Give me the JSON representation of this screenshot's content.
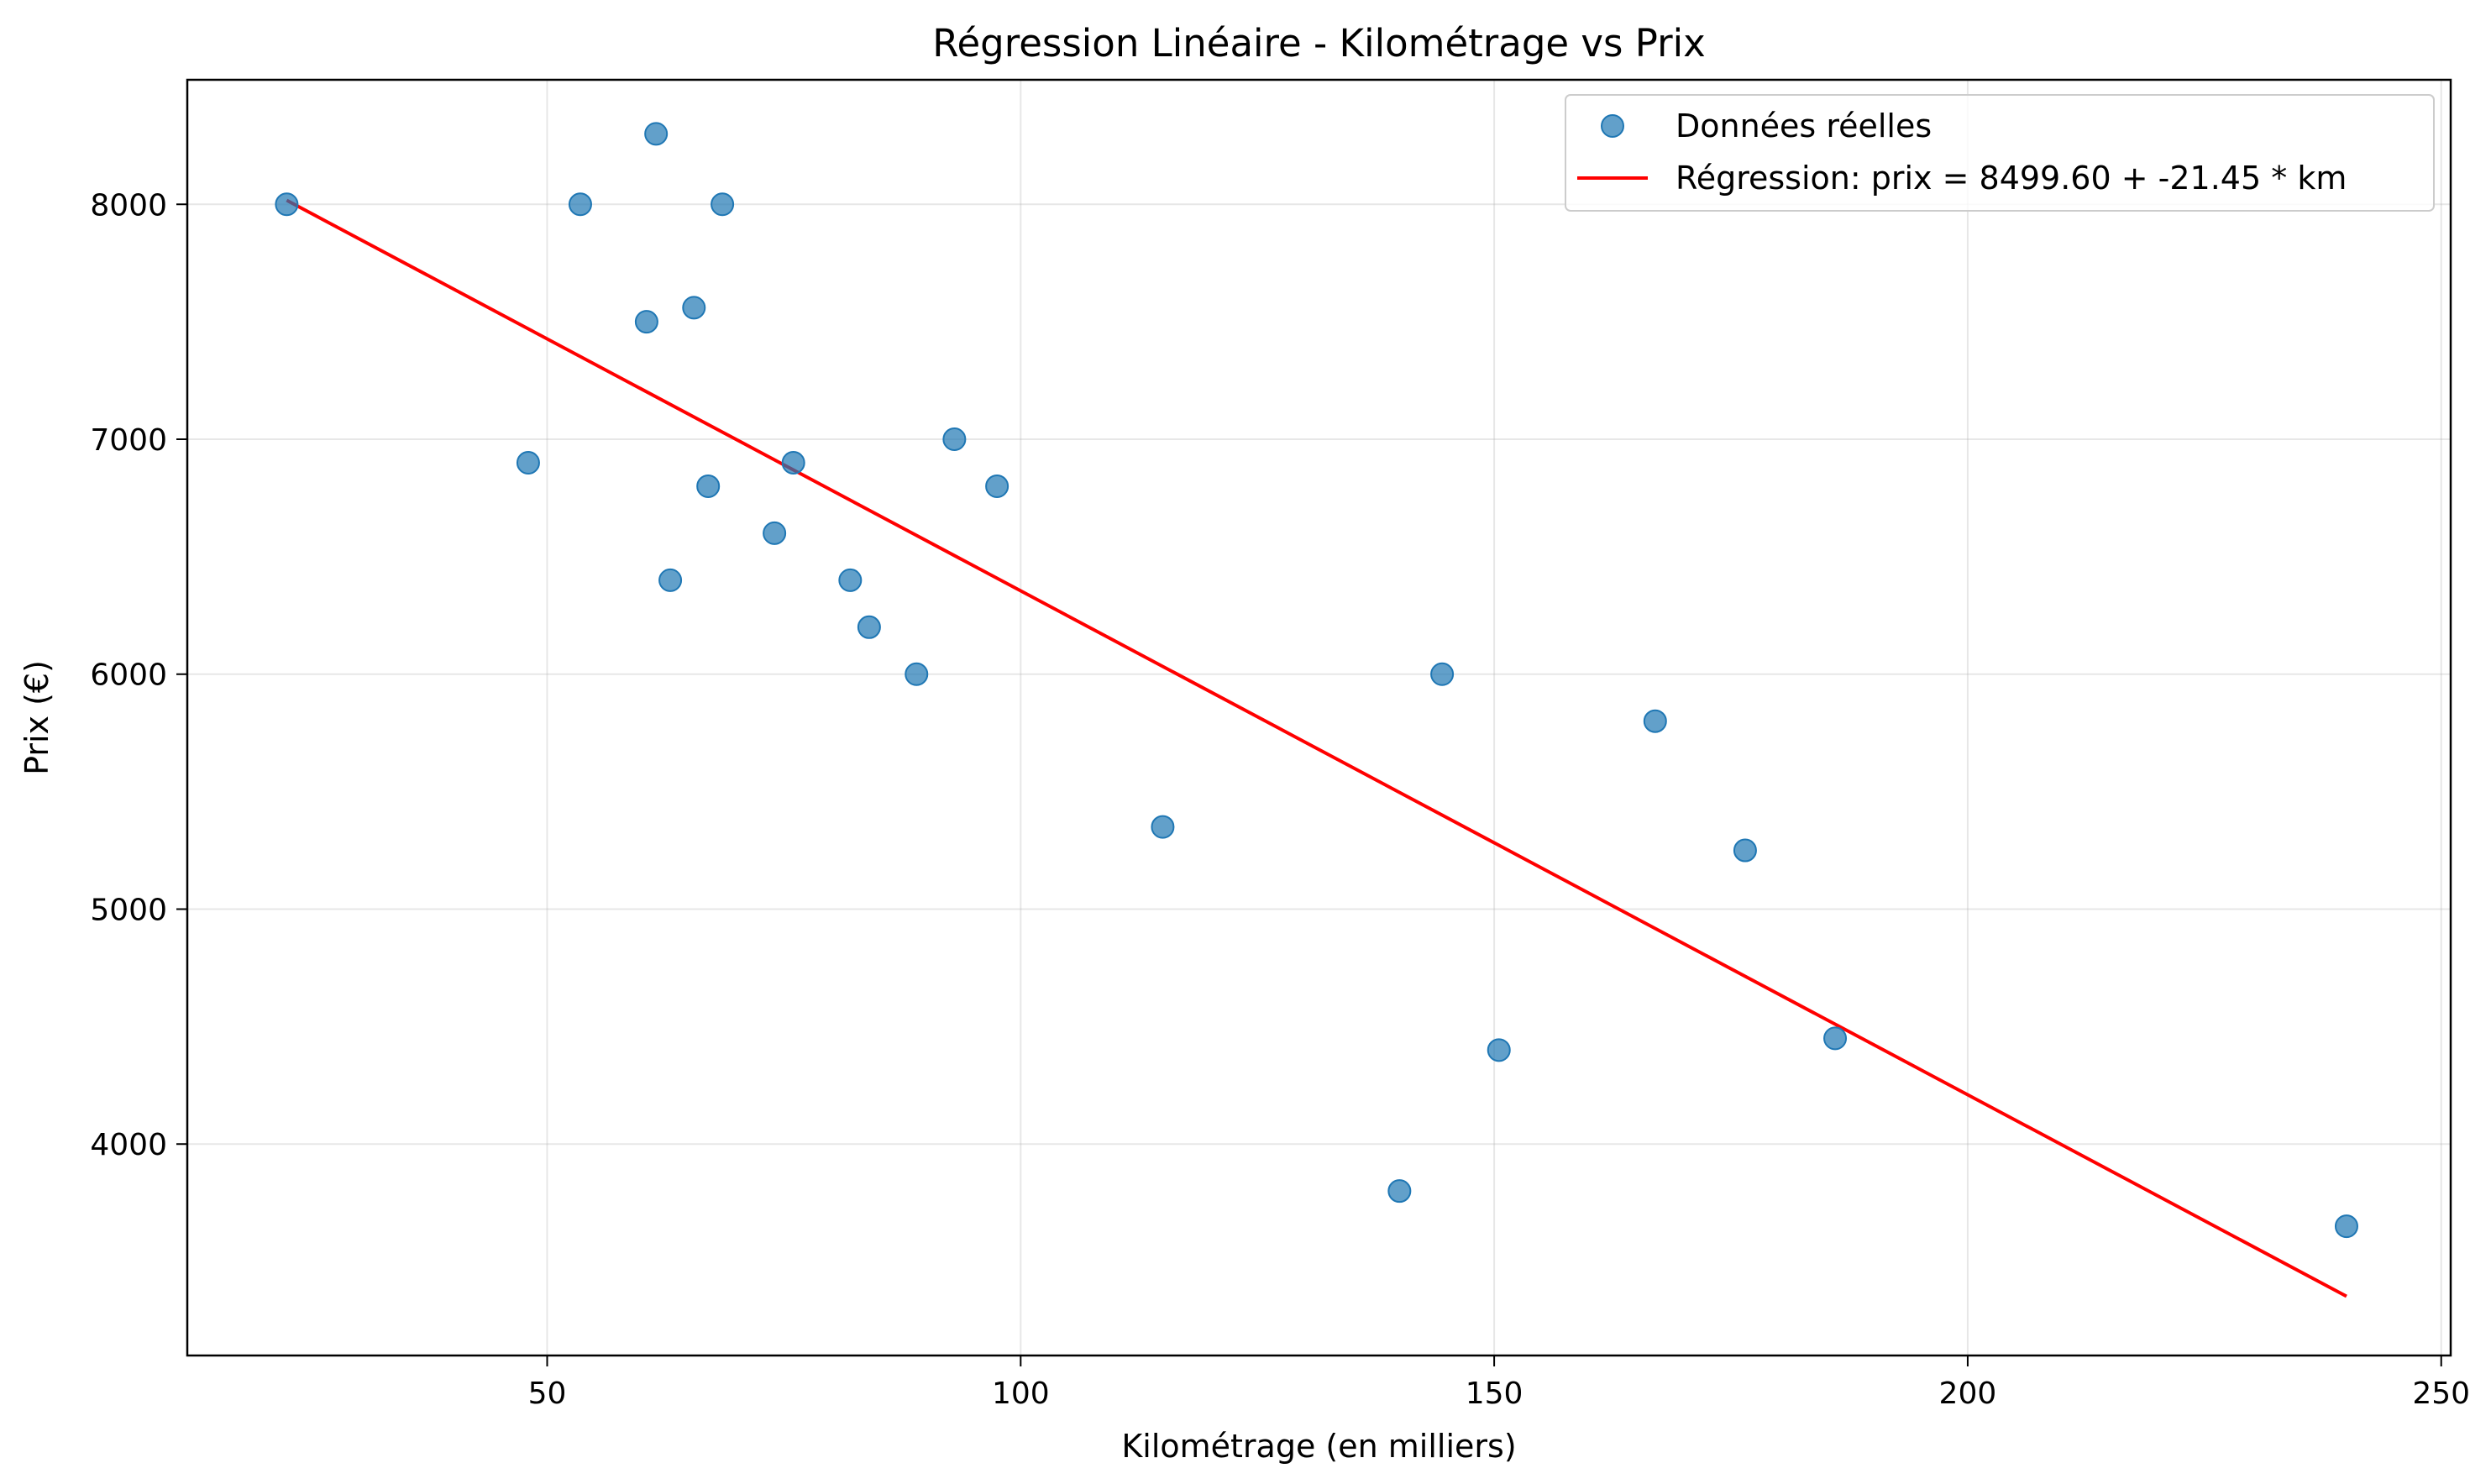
{
  "chart_data": {
    "type": "scatter",
    "title": "Régression Linéaire - Kilométrage vs Prix",
    "xlabel": "Kilométrage (en milliers)",
    "ylabel": "Prix (€)",
    "xlim": [
      12,
      251
    ],
    "ylim": [
      3100,
      8530
    ],
    "xticks": [
      50,
      100,
      150,
      200,
      250
    ],
    "yticks": [
      4000,
      5000,
      6000,
      7000,
      8000
    ],
    "grid": true,
    "legend_position": "upper right",
    "series": [
      {
        "name": "Données réelles",
        "type": "scatter",
        "color": "#1f77b4",
        "points": [
          {
            "x": 22.5,
            "y": 8000
          },
          {
            "x": 48.0,
            "y": 6900
          },
          {
            "x": 53.5,
            "y": 8000
          },
          {
            "x": 60.5,
            "y": 7500
          },
          {
            "x": 61.5,
            "y": 8300
          },
          {
            "x": 63.0,
            "y": 6400
          },
          {
            "x": 65.5,
            "y": 7560
          },
          {
            "x": 67.0,
            "y": 6800
          },
          {
            "x": 68.5,
            "y": 8000
          },
          {
            "x": 74.0,
            "y": 6600
          },
          {
            "x": 76.0,
            "y": 6900
          },
          {
            "x": 82.0,
            "y": 6400
          },
          {
            "x": 84.0,
            "y": 6200
          },
          {
            "x": 89.0,
            "y": 6000
          },
          {
            "x": 93.0,
            "y": 7000
          },
          {
            "x": 97.5,
            "y": 6800
          },
          {
            "x": 115.0,
            "y": 5350
          },
          {
            "x": 140.0,
            "y": 3800
          },
          {
            "x": 144.5,
            "y": 6000
          },
          {
            "x": 150.5,
            "y": 4400
          },
          {
            "x": 167.0,
            "y": 5800
          },
          {
            "x": 176.5,
            "y": 5250
          },
          {
            "x": 186.0,
            "y": 4450
          },
          {
            "x": 240.0,
            "y": 3650
          }
        ]
      },
      {
        "name": "Régression: prix = 8499.60 + -21.45 * km",
        "type": "line",
        "color": "#ff0000",
        "points": [
          {
            "x": 22.5,
            "y": 8017
          },
          {
            "x": 240.0,
            "y": 3352
          }
        ]
      }
    ]
  }
}
